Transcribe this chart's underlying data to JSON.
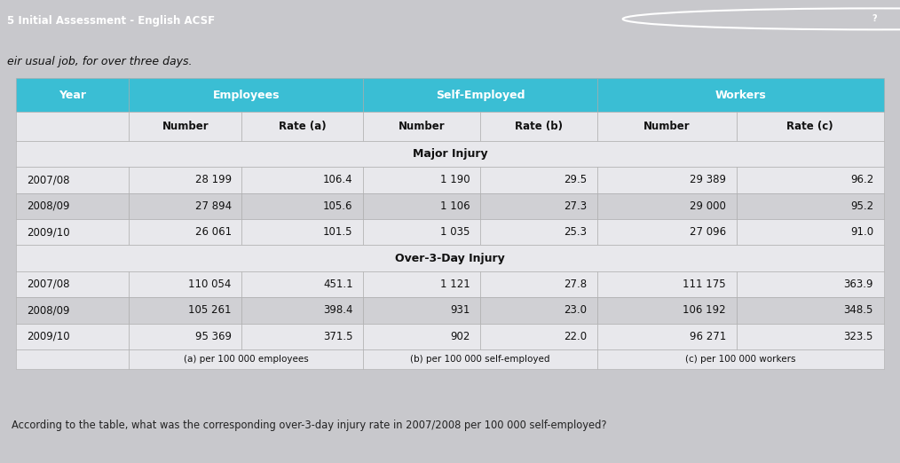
{
  "title_bar_text": "5 Initial Assessment - English ACSF",
  "subtitle_text": "eir usual job, for over three days.",
  "question_text": "According to the table, what was the corresponding over-3-day injury rate in 2007/2008 per 100 000 self-employed?",
  "header_bg_color": "#3ABED4",
  "title_bar_color": "#3ABED4",
  "page_bg_color": "#C8C8CC",
  "table_bg_color": "#D8D8DC",
  "row_bg_white": "#E8E8EC",
  "row_bg_gray": "#D0D0D4",
  "major_injury_rows": [
    [
      "2007/08",
      "28 199",
      "106.4",
      "1 190",
      "29.5",
      "29 389",
      "96.2"
    ],
    [
      "2008/09",
      "27 894",
      "105.6",
      "1 106",
      "27.3",
      "29 000",
      "95.2"
    ],
    [
      "2009/10",
      "26 061",
      "101.5",
      "1 035",
      "25.3",
      "27 096",
      "91.0"
    ]
  ],
  "over3day_rows": [
    [
      "2007/08",
      "110 054",
      "451.1",
      "1 121",
      "27.8",
      "111 175",
      "363.9"
    ],
    [
      "2008/09",
      "105 261",
      "398.4",
      "931",
      "23.0",
      "106 192",
      "348.5"
    ],
    [
      "2009/10",
      "95 369",
      "371.5",
      "902",
      "22.0",
      "96 271",
      "323.5"
    ]
  ],
  "footnote_cols": [
    "",
    "(a) per 100 000 employees",
    "(b) per 100 000 self-employed",
    "(c) per 100 000 workers"
  ],
  "text_dark": "#111111",
  "text_white": "#FFFFFF",
  "text_question": "#222222"
}
